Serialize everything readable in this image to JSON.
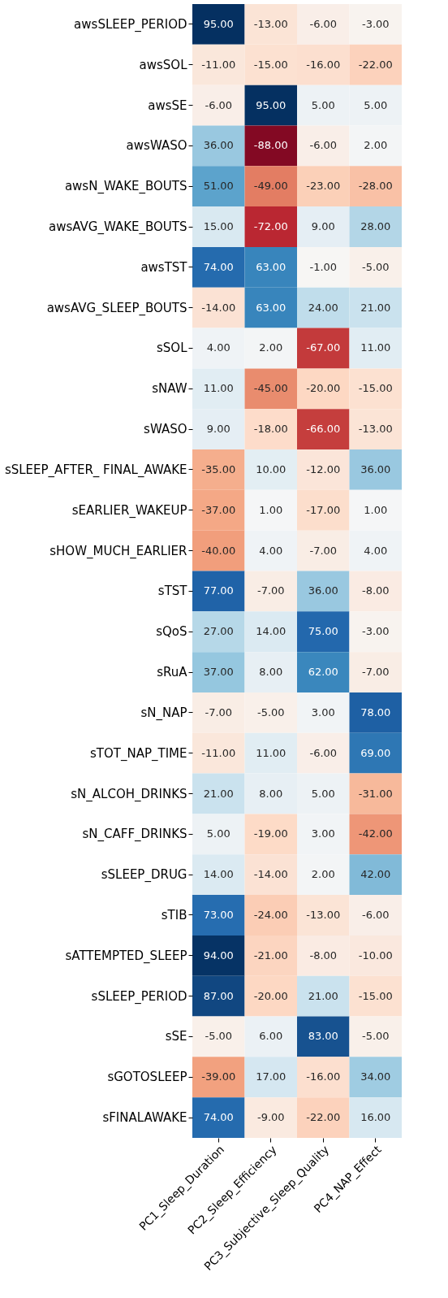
{
  "chart_data": {
    "type": "heatmap",
    "categories": [
      "PC1_Sleep_Duration",
      "PC2_Sleep_Efficiency",
      "PC3_Subjective_Sleep_Quality",
      "PC4_NAP_Effect"
    ],
    "y_categories": [
      "awsSLEEP_PERIOD",
      "awsSOL",
      "awsSE",
      "awsWASO",
      "awsN_WAKE_BOUTS",
      "awsAVG_WAKE_BOUTS",
      "awsTST",
      "awsAVG_SLEEP_BOUTS",
      "sSOL",
      "sNAW",
      "sWASO",
      "sSLEEP_AFTER_ FINAL_AWAKE",
      "sEARLIER_WAKEUP",
      "sHOW_MUCH_EARLIER",
      "sTST",
      "sQoS",
      "sRuA",
      "sN_NAP",
      "sTOT_NAP_TIME",
      "sN_ALCOH_DRINKS",
      "sN_CAFF_DRINKS",
      "sSLEEP_DRUG",
      "sTIB",
      "sATTEMPTED_SLEEP",
      "sSLEEP_PERIOD",
      "sSE",
      "sGOTOSLEEP",
      "sFINALAWAKE"
    ],
    "cells": [
      [
        95,
        -13,
        -6,
        -3
      ],
      [
        -11,
        -15,
        -16,
        -22
      ],
      [
        -6,
        95,
        5,
        5
      ],
      [
        36,
        -88,
        -6,
        2
      ],
      [
        51,
        -49,
        -23,
        -28
      ],
      [
        15,
        -72,
        9,
        28
      ],
      [
        74,
        63,
        -1,
        -5
      ],
      [
        -14,
        63,
        24,
        21
      ],
      [
        4,
        2,
        -67,
        11
      ],
      [
        11,
        -45,
        -20,
        -15
      ],
      [
        9,
        -18,
        -66,
        -13
      ],
      [
        -35,
        10,
        -12,
        36
      ],
      [
        -37,
        1,
        -17,
        1
      ],
      [
        -40,
        4,
        -7,
        4
      ],
      [
        77,
        -7,
        36,
        -8
      ],
      [
        27,
        14,
        75,
        -3
      ],
      [
        37,
        8,
        62,
        -7
      ],
      [
        -7,
        -5,
        3,
        78
      ],
      [
        -11,
        11,
        -6,
        69
      ],
      [
        21,
        8,
        5,
        -31
      ],
      [
        5,
        -19,
        3,
        -42
      ],
      [
        14,
        -14,
        2,
        42
      ],
      [
        73,
        -24,
        -13,
        -6
      ],
      [
        94,
        -21,
        -8,
        -10
      ],
      [
        87,
        -20,
        21,
        -15
      ],
      [
        -5,
        6,
        83,
        -5
      ],
      [
        -39,
        17,
        -16,
        34
      ],
      [
        74,
        -9,
        -22,
        16
      ]
    ],
    "cell_labels": [
      [
        "95.00",
        "-13.00",
        "-6.00",
        "-3.00"
      ],
      [
        "-11.00",
        "-15.00",
        "-16.00",
        "-22.00"
      ],
      [
        "-6.00",
        "95.00",
        "5.00",
        "5.00"
      ],
      [
        "36.00",
        "-88.00",
        "-6.00",
        "2.00"
      ],
      [
        "51.00",
        "-49.00",
        "-23.00",
        "-28.00"
      ],
      [
        "15.00",
        "-72.00",
        "9.00",
        "28.00"
      ],
      [
        "74.00",
        "63.00",
        "-1.00",
        "-5.00"
      ],
      [
        "-14.00",
        "63.00",
        "24.00",
        "21.00"
      ],
      [
        "4.00",
        "2.00",
        "-67.00",
        "11.00"
      ],
      [
        "11.00",
        "-45.00",
        "-20.00",
        "-15.00"
      ],
      [
        "9.00",
        "-18.00",
        "-66.00",
        "-13.00"
      ],
      [
        "-35.00",
        "10.00",
        "-12.00",
        "36.00"
      ],
      [
        "-37.00",
        "1.00",
        "-17.00",
        "1.00"
      ],
      [
        "-40.00",
        "4.00",
        "-7.00",
        "4.00"
      ],
      [
        "77.00",
        "-7.00",
        "36.00",
        "-8.00"
      ],
      [
        "27.00",
        "14.00",
        "75.00",
        "-3.00"
      ],
      [
        "37.00",
        "8.00",
        "62.00",
        "-7.00"
      ],
      [
        "-7.00",
        "-5.00",
        "3.00",
        "78.00"
      ],
      [
        "-11.00",
        "11.00",
        "-6.00",
        "69.00"
      ],
      [
        "21.00",
        "8.00",
        "5.00",
        "-31.00"
      ],
      [
        "5.00",
        "-19.00",
        "3.00",
        "-42.00"
      ],
      [
        "14.00",
        "-14.00",
        "2.00",
        "42.00"
      ],
      [
        "73.00",
        "-24.00",
        "-13.00",
        "-6.00"
      ],
      [
        "94.00",
        "-21.00",
        "-8.00",
        "-10.00"
      ],
      [
        "87.00",
        "-20.00",
        "21.00",
        "-15.00"
      ],
      [
        "-5.00",
        "6.00",
        "83.00",
        "-5.00"
      ],
      [
        "-39.00",
        "17.00",
        "-16.00",
        "34.00"
      ],
      [
        "74.00",
        "-9.00",
        "-22.00",
        "16.00"
      ]
    ]
  }
}
